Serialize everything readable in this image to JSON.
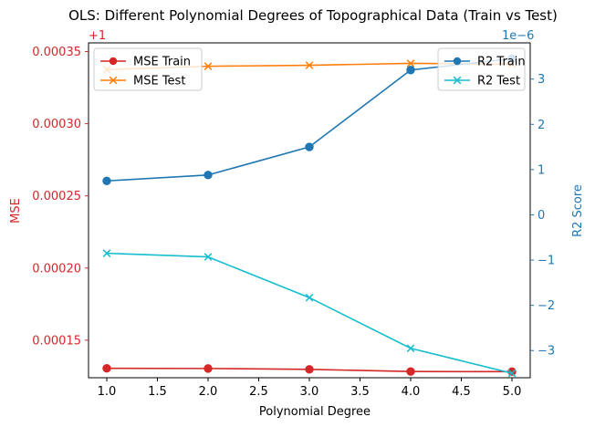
{
  "chart_data": {
    "type": "line",
    "title": "OLS: Different Polynomial Degrees of Topographical Data (Train vs Test)",
    "xlabel": "Polynomial Degree",
    "x": [
      1.0,
      2.0,
      3.0,
      4.0,
      5.0
    ],
    "x_ticks": [
      "1.0",
      "1.5",
      "2.0",
      "2.5",
      "3.0",
      "3.5",
      "4.0",
      "4.5",
      "5.0"
    ],
    "xlim": [
      0.82,
      5.18
    ],
    "left_axis": {
      "label": "MSE",
      "color": "#d62728",
      "offset_text": "+1",
      "ticks": [
        "0.00015",
        "0.00020",
        "0.00025",
        "0.00030",
        "0.00035"
      ],
      "ylim": [
        0.000124,
        0.000356
      ]
    },
    "right_axis": {
      "label": "R2 Score",
      "color": "#1f77b4",
      "offset_text": "1e−6",
      "ticks": [
        "−3",
        "−2",
        "−1",
        "0",
        "1",
        "2",
        "3"
      ],
      "ylim": [
        -3.6,
        3.8
      ]
    },
    "series_left": [
      {
        "name": "MSE Train",
        "color": "#d62728",
        "marker": "circle",
        "values": [
          0.0001305,
          0.0001304,
          0.0001298,
          0.0001283,
          0.0001282
        ]
      },
      {
        "name": "MSE Test",
        "color": "#ff7f0e",
        "marker": "x",
        "values": [
          0.0003375,
          0.0003398,
          0.0003405,
          0.0003418,
          0.0003412
        ]
      }
    ],
    "series_right": [
      {
        "name": "R2 Train",
        "color": "#1f77b4",
        "marker": "circle",
        "values": [
          0.75,
          0.88,
          1.5,
          3.2,
          3.45
        ]
      },
      {
        "name": "R2 Test",
        "color": "#17becf",
        "marker": "x",
        "values": [
          -0.85,
          -0.93,
          -1.83,
          -2.95,
          -3.5
        ]
      }
    ],
    "legend_left_placement": "top-left",
    "legend_right_placement": "top-right",
    "grid": false
  }
}
